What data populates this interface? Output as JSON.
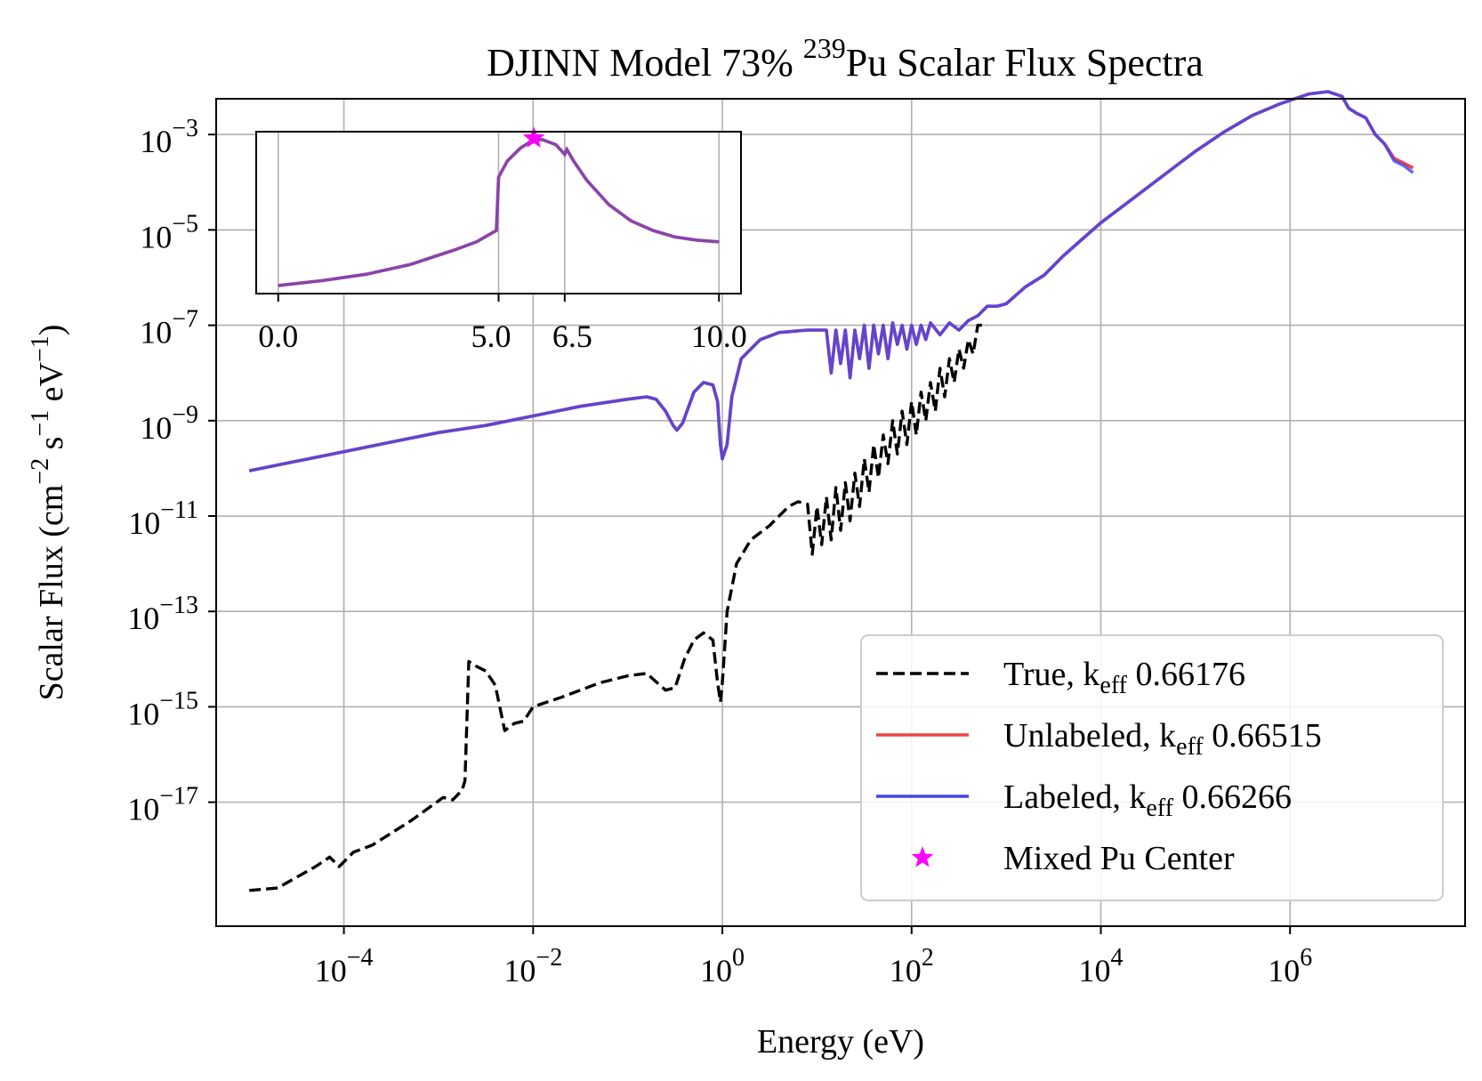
{
  "chart_data": {
    "type": "line",
    "title": "DJINN Model 73% ",
    "title_sup": "239",
    "title_rest": "Pu Scalar Flux Spectra",
    "xlabel": "Energy (eV)",
    "ylabel": {
      "pre": "Scalar Flux (cm",
      "e1": "−2",
      "mid1": " s",
      "e2": "−1",
      "mid2": " eV",
      "e3": "−1",
      "post": ")"
    },
    "xscale": "log",
    "yscale": "log",
    "x_exp_range": [
      -5.35,
      7.85
    ],
    "y_exp_range": [
      -19.6,
      -2.25
    ],
    "x_ticks": [
      {
        "base": "10",
        "exp": "−4",
        "value": -4
      },
      {
        "base": "10",
        "exp": "−2",
        "value": -2
      },
      {
        "base": "10",
        "exp": "0",
        "value": 0
      },
      {
        "base": "10",
        "exp": "2",
        "value": 2
      },
      {
        "base": "10",
        "exp": "4",
        "value": 4
      },
      {
        "base": "10",
        "exp": "6",
        "value": 6
      }
    ],
    "y_ticks": [
      {
        "base": "10",
        "exp": "−3",
        "value": -3
      },
      {
        "base": "10",
        "exp": "−5",
        "value": -5
      },
      {
        "base": "10",
        "exp": "−7",
        "value": -7
      },
      {
        "base": "10",
        "exp": "−9",
        "value": -9
      },
      {
        "base": "10",
        "exp": "−11",
        "value": -11
      },
      {
        "base": "10",
        "exp": "−13",
        "value": -13
      },
      {
        "base": "10",
        "exp": "−15",
        "value": -15
      },
      {
        "base": "10",
        "exp": "−17",
        "value": -17
      }
    ],
    "grid": true,
    "legend": {
      "position": "lower-right",
      "entries": [
        {
          "label": "True, k",
          "sub": "eff",
          "value": " 0.66176",
          "style": "dashed",
          "color": "#000000"
        },
        {
          "label": "Unlabeled, k",
          "sub": "eff",
          "value": " 0.66515",
          "style": "solid",
          "color": "#ef4444"
        },
        {
          "label": "Labeled, k",
          "sub": "eff",
          "value": " 0.66266",
          "style": "solid",
          "color": "#4444ee"
        },
        {
          "label": "Mixed Pu Center",
          "sub": "",
          "value": "",
          "style": "star",
          "color": "#ff00ff"
        }
      ]
    },
    "series": [
      {
        "name": "True",
        "color": "#000000",
        "style": "dashed",
        "points": [
          [
            -5.0,
            -18.85
          ],
          [
            -4.7,
            -18.8
          ],
          [
            -4.3,
            -18.35
          ],
          [
            -4.15,
            -18.15
          ],
          [
            -4.05,
            -18.35
          ],
          [
            -3.9,
            -18.05
          ],
          [
            -3.7,
            -17.9
          ],
          [
            -3.3,
            -17.4
          ],
          [
            -2.95,
            -16.9
          ],
          [
            -2.85,
            -16.95
          ],
          [
            -2.75,
            -16.75
          ],
          [
            -2.72,
            -16.55
          ],
          [
            -2.68,
            -14.05
          ],
          [
            -2.6,
            -14.15
          ],
          [
            -2.5,
            -14.25
          ],
          [
            -2.4,
            -14.55
          ],
          [
            -2.3,
            -15.5
          ],
          [
            -2.2,
            -15.35
          ],
          [
            -2.1,
            -15.3
          ],
          [
            -2.0,
            -15.0
          ],
          [
            -1.7,
            -14.8
          ],
          [
            -1.3,
            -14.5
          ],
          [
            -1.0,
            -14.35
          ],
          [
            -0.8,
            -14.3
          ],
          [
            -0.6,
            -14.65
          ],
          [
            -0.5,
            -14.6
          ],
          [
            -0.4,
            -14.0
          ],
          [
            -0.3,
            -13.6
          ],
          [
            -0.2,
            -13.45
          ],
          [
            -0.1,
            -13.6
          ],
          [
            -0.05,
            -14.5
          ],
          [
            -0.02,
            -14.9
          ],
          [
            0.0,
            -14.5
          ],
          [
            0.05,
            -13.0
          ],
          [
            0.15,
            -12.0
          ],
          [
            0.3,
            -11.5
          ],
          [
            0.5,
            -11.2
          ],
          [
            0.7,
            -10.8
          ],
          [
            0.8,
            -10.7
          ],
          [
            0.9,
            -10.75
          ],
          [
            0.95,
            -11.8
          ],
          [
            1.0,
            -10.8
          ],
          [
            1.05,
            -11.6
          ],
          [
            1.1,
            -10.6
          ],
          [
            1.15,
            -11.5
          ],
          [
            1.2,
            -10.4
          ],
          [
            1.25,
            -11.3
          ],
          [
            1.3,
            -10.3
          ],
          [
            1.35,
            -11.1
          ],
          [
            1.4,
            -10.1
          ],
          [
            1.45,
            -10.8
          ],
          [
            1.5,
            -9.8
          ],
          [
            1.55,
            -10.5
          ],
          [
            1.6,
            -9.5
          ],
          [
            1.65,
            -10.2
          ],
          [
            1.7,
            -9.3
          ],
          [
            1.75,
            -9.9
          ],
          [
            1.8,
            -9.0
          ],
          [
            1.85,
            -9.7
          ],
          [
            1.9,
            -8.8
          ],
          [
            1.95,
            -9.5
          ],
          [
            2.0,
            -8.6
          ],
          [
            2.05,
            -9.3
          ],
          [
            2.1,
            -8.4
          ],
          [
            2.15,
            -9.0
          ],
          [
            2.2,
            -8.2
          ],
          [
            2.25,
            -8.8
          ],
          [
            2.3,
            -7.9
          ],
          [
            2.35,
            -8.5
          ],
          [
            2.4,
            -7.7
          ],
          [
            2.45,
            -8.2
          ],
          [
            2.5,
            -7.5
          ],
          [
            2.55,
            -7.9
          ],
          [
            2.6,
            -7.3
          ],
          [
            2.65,
            -7.6
          ],
          [
            2.7,
            -7.0
          ],
          [
            2.8,
            -7.0
          ]
        ]
      },
      {
        "name": "Unlabeled",
        "color": "#ef4444",
        "style": "solid",
        "points": [
          [
            -5.0,
            -10.05
          ],
          [
            -4.5,
            -9.85
          ],
          [
            -4.0,
            -9.65
          ],
          [
            -3.5,
            -9.45
          ],
          [
            -3.0,
            -9.25
          ],
          [
            -2.5,
            -9.1
          ],
          [
            -2.0,
            -8.9
          ],
          [
            -1.5,
            -8.7
          ],
          [
            -1.0,
            -8.55
          ],
          [
            -0.8,
            -8.5
          ],
          [
            -0.7,
            -8.55
          ],
          [
            -0.6,
            -8.8
          ],
          [
            -0.52,
            -9.1
          ],
          [
            -0.48,
            -9.2
          ],
          [
            -0.42,
            -9.05
          ],
          [
            -0.3,
            -8.4
          ],
          [
            -0.2,
            -8.2
          ],
          [
            -0.1,
            -8.25
          ],
          [
            -0.05,
            -8.6
          ],
          [
            -0.02,
            -9.5
          ],
          [
            0.0,
            -9.8
          ],
          [
            0.05,
            -9.5
          ],
          [
            0.1,
            -8.5
          ],
          [
            0.2,
            -7.7
          ],
          [
            0.4,
            -7.3
          ],
          [
            0.6,
            -7.15
          ],
          [
            0.9,
            -7.1
          ],
          [
            1.1,
            -7.1
          ],
          [
            1.15,
            -8.0
          ],
          [
            1.2,
            -7.1
          ],
          [
            1.25,
            -7.8
          ],
          [
            1.3,
            -7.1
          ],
          [
            1.35,
            -8.1
          ],
          [
            1.4,
            -7.1
          ],
          [
            1.45,
            -7.7
          ],
          [
            1.5,
            -7.0
          ],
          [
            1.55,
            -7.9
          ],
          [
            1.6,
            -7.0
          ],
          [
            1.65,
            -7.6
          ],
          [
            1.7,
            -7.0
          ],
          [
            1.75,
            -7.7
          ],
          [
            1.8,
            -6.95
          ],
          [
            1.85,
            -7.4
          ],
          [
            1.9,
            -7.0
          ],
          [
            1.95,
            -7.5
          ],
          [
            2.0,
            -7.0
          ],
          [
            2.05,
            -7.4
          ],
          [
            2.1,
            -7.0
          ],
          [
            2.15,
            -7.3
          ],
          [
            2.2,
            -6.95
          ],
          [
            2.3,
            -7.2
          ],
          [
            2.4,
            -6.95
          ],
          [
            2.5,
            -7.1
          ],
          [
            2.6,
            -6.9
          ],
          [
            2.7,
            -6.8
          ],
          [
            2.8,
            -6.6
          ],
          [
            2.9,
            -6.6
          ],
          [
            3.0,
            -6.55
          ],
          [
            3.2,
            -6.2
          ],
          [
            3.4,
            -5.95
          ],
          [
            3.6,
            -5.55
          ],
          [
            3.8,
            -5.2
          ],
          [
            4.0,
            -4.85
          ],
          [
            4.2,
            -4.55
          ],
          [
            4.5,
            -4.1
          ],
          [
            4.8,
            -3.65
          ],
          [
            5.0,
            -3.35
          ],
          [
            5.3,
            -2.95
          ],
          [
            5.6,
            -2.6
          ],
          [
            5.9,
            -2.35
          ],
          [
            6.2,
            -2.15
          ],
          [
            6.4,
            -2.1
          ],
          [
            6.55,
            -2.2
          ],
          [
            6.62,
            -2.45
          ],
          [
            6.7,
            -2.55
          ],
          [
            6.8,
            -2.65
          ],
          [
            6.9,
            -3.0
          ],
          [
            7.0,
            -3.2
          ],
          [
            7.1,
            -3.5
          ],
          [
            7.2,
            -3.6
          ],
          [
            7.3,
            -3.7
          ]
        ]
      },
      {
        "name": "Labeled",
        "color": "#4444ee",
        "style": "solid",
        "points": [
          [
            -5.0,
            -10.05
          ],
          [
            -4.5,
            -9.85
          ],
          [
            -4.0,
            -9.65
          ],
          [
            -3.5,
            -9.45
          ],
          [
            -3.0,
            -9.25
          ],
          [
            -2.5,
            -9.1
          ],
          [
            -2.0,
            -8.9
          ],
          [
            -1.5,
            -8.7
          ],
          [
            -1.0,
            -8.55
          ],
          [
            -0.8,
            -8.5
          ],
          [
            -0.7,
            -8.55
          ],
          [
            -0.6,
            -8.8
          ],
          [
            -0.52,
            -9.1
          ],
          [
            -0.48,
            -9.2
          ],
          [
            -0.42,
            -9.05
          ],
          [
            -0.3,
            -8.4
          ],
          [
            -0.2,
            -8.2
          ],
          [
            -0.1,
            -8.25
          ],
          [
            -0.05,
            -8.6
          ],
          [
            -0.02,
            -9.5
          ],
          [
            0.0,
            -9.8
          ],
          [
            0.05,
            -9.5
          ],
          [
            0.1,
            -8.5
          ],
          [
            0.2,
            -7.7
          ],
          [
            0.4,
            -7.3
          ],
          [
            0.6,
            -7.15
          ],
          [
            0.9,
            -7.1
          ],
          [
            1.1,
            -7.1
          ],
          [
            1.15,
            -8.0
          ],
          [
            1.2,
            -7.1
          ],
          [
            1.25,
            -7.8
          ],
          [
            1.3,
            -7.1
          ],
          [
            1.35,
            -8.1
          ],
          [
            1.4,
            -7.1
          ],
          [
            1.45,
            -7.7
          ],
          [
            1.5,
            -7.0
          ],
          [
            1.55,
            -7.9
          ],
          [
            1.6,
            -7.0
          ],
          [
            1.65,
            -7.6
          ],
          [
            1.7,
            -7.0
          ],
          [
            1.75,
            -7.7
          ],
          [
            1.8,
            -6.95
          ],
          [
            1.85,
            -7.4
          ],
          [
            1.9,
            -7.0
          ],
          [
            1.95,
            -7.5
          ],
          [
            2.0,
            -7.0
          ],
          [
            2.05,
            -7.4
          ],
          [
            2.1,
            -7.0
          ],
          [
            2.15,
            -7.3
          ],
          [
            2.2,
            -6.95
          ],
          [
            2.3,
            -7.2
          ],
          [
            2.4,
            -6.95
          ],
          [
            2.5,
            -7.1
          ],
          [
            2.6,
            -6.9
          ],
          [
            2.7,
            -6.8
          ],
          [
            2.8,
            -6.6
          ],
          [
            2.9,
            -6.6
          ],
          [
            3.0,
            -6.55
          ],
          [
            3.2,
            -6.2
          ],
          [
            3.4,
            -5.95
          ],
          [
            3.6,
            -5.55
          ],
          [
            3.8,
            -5.2
          ],
          [
            4.0,
            -4.85
          ],
          [
            4.2,
            -4.55
          ],
          [
            4.5,
            -4.1
          ],
          [
            4.8,
            -3.65
          ],
          [
            5.0,
            -3.35
          ],
          [
            5.3,
            -2.95
          ],
          [
            5.6,
            -2.6
          ],
          [
            5.9,
            -2.35
          ],
          [
            6.2,
            -2.15
          ],
          [
            6.4,
            -2.1
          ],
          [
            6.55,
            -2.2
          ],
          [
            6.62,
            -2.45
          ],
          [
            6.7,
            -2.55
          ],
          [
            6.8,
            -2.65
          ],
          [
            6.9,
            -3.0
          ],
          [
            7.0,
            -3.2
          ],
          [
            7.1,
            -3.55
          ],
          [
            7.2,
            -3.65
          ],
          [
            7.3,
            -3.8
          ]
        ]
      }
    ],
    "inset": {
      "x_range": [
        -0.5,
        10.5
      ],
      "y_range": [
        0.0,
        1.0
      ],
      "x_ticks": [
        "0.0",
        "5.0",
        "6.5",
        "10.0"
      ],
      "x_tick_values": [
        0.0,
        5.0,
        6.5,
        10.0
      ],
      "curve": [
        [
          0.0,
          0.05
        ],
        [
          1.0,
          0.08
        ],
        [
          2.0,
          0.12
        ],
        [
          3.0,
          0.18
        ],
        [
          4.0,
          0.27
        ],
        [
          4.5,
          0.32
        ],
        [
          4.95,
          0.39
        ],
        [
          5.0,
          0.72
        ],
        [
          5.2,
          0.82
        ],
        [
          5.5,
          0.9
        ],
        [
          5.8,
          0.95
        ],
        [
          6.0,
          0.95
        ],
        [
          6.3,
          0.92
        ],
        [
          6.5,
          0.86
        ],
        [
          6.55,
          0.89
        ],
        [
          6.7,
          0.82
        ],
        [
          7.0,
          0.7
        ],
        [
          7.5,
          0.55
        ],
        [
          8.0,
          0.45
        ],
        [
          8.5,
          0.39
        ],
        [
          9.0,
          0.35
        ],
        [
          9.5,
          0.33
        ],
        [
          10.0,
          0.32
        ]
      ],
      "star_point": [
        5.8,
        0.96
      ]
    }
  }
}
